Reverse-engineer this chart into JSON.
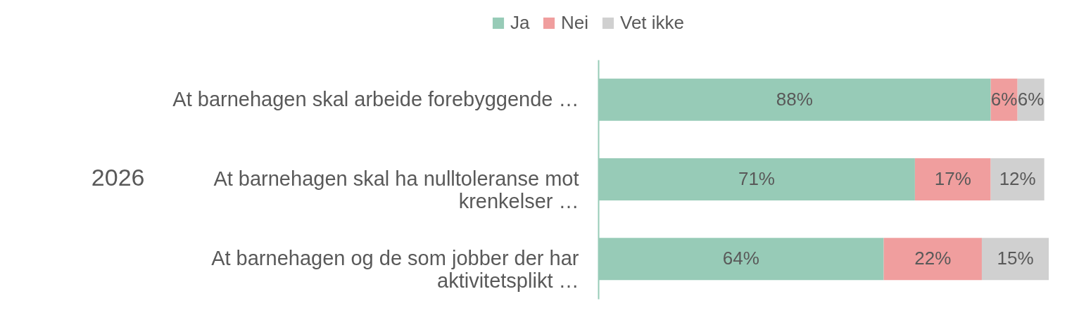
{
  "chart_data": {
    "type": "bar",
    "orientation": "horizontal",
    "stacked": true,
    "ylabel": "2026",
    "categories": [
      "At barnehagen skal arbeide forebyggende …",
      "At barnehagen skal ha nulltoleranse mot krenkelser …",
      "At barnehagen og de som jobber der har aktivitetsplikt …"
    ],
    "series": [
      {
        "name": "Ja",
        "color": "#97cbb7",
        "values": [
          88,
          71,
          64
        ],
        "value_labels": [
          "88%",
          "71%",
          "64%"
        ]
      },
      {
        "name": "Nei",
        "color": "#f09e9e",
        "values": [
          6,
          17,
          22
        ],
        "value_labels": [
          "6%",
          "17%",
          "22%"
        ]
      },
      {
        "name": "Vet ikke",
        "color": "#d0d0d0",
        "values": [
          6,
          12,
          15
        ],
        "value_labels": [
          "6%",
          "12%",
          "15%"
        ]
      }
    ],
    "xlim": [
      0,
      101
    ],
    "tick_labels": "y",
    "legend": "top"
  }
}
